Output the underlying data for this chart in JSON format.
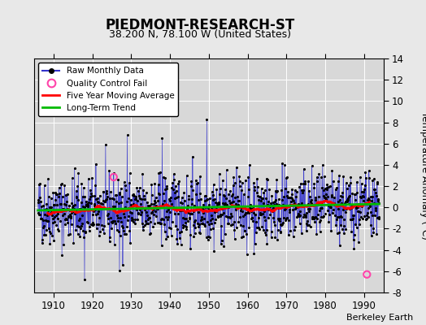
{
  "title": "PIEDMONT-RESEARCH-ST",
  "subtitle": "38.200 N, 78.100 W (United States)",
  "ylabel": "Temperature Anomaly (°C)",
  "credit": "Berkeley Earth",
  "xlim": [
    1905,
    1995
  ],
  "ylim": [
    -8,
    14
  ],
  "yticks": [
    -8,
    -6,
    -4,
    -2,
    0,
    2,
    4,
    6,
    8,
    10,
    12,
    14
  ],
  "xticks": [
    1910,
    1920,
    1930,
    1940,
    1950,
    1960,
    1970,
    1980,
    1990
  ],
  "start_year": 1906.0,
  "n_months": 1056,
  "bg_color": "#e8e8e8",
  "plot_bg_color": "#d8d8d8",
  "grid_color": "#ffffff",
  "raw_line_color": "#3333cc",
  "raw_marker_color": "#000000",
  "moving_avg_color": "#ff0000",
  "trend_color": "#00bb00",
  "qc_fail_color": "#ff44aa",
  "seed": 42,
  "qc_fail_points": [
    {
      "year": 1925.5,
      "value": 2.85
    },
    {
      "year": 1990.75,
      "value": -6.3
    }
  ],
  "spike_1949_value": 8.3,
  "spike_1938_value": 6.5,
  "spike_1929_value": 6.8,
  "spike_neg_1918_value": -6.8,
  "spike_neg_1927_value": -5.9
}
